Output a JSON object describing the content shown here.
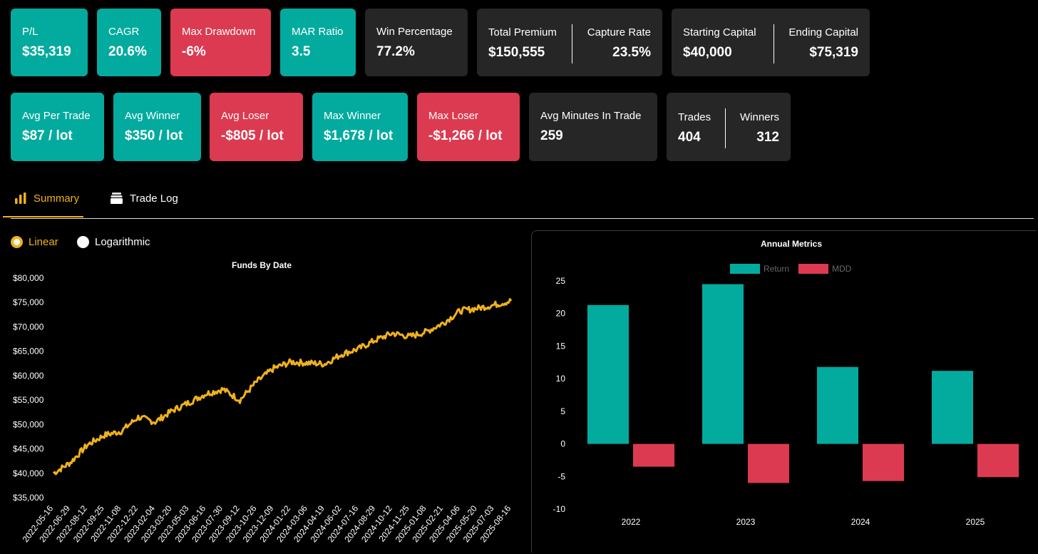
{
  "stats_row1": [
    {
      "label": "P/L",
      "value": "$35,319",
      "tone": "teal"
    },
    {
      "label": "CAGR",
      "value": "20.6%",
      "tone": "teal"
    },
    {
      "label": "Max Drawdown",
      "value": "-6%",
      "tone": "red"
    },
    {
      "label": "MAR Ratio",
      "value": "3.5",
      "tone": "teal"
    },
    {
      "label": "Win Percentage",
      "value": "77.2%",
      "tone": "dark"
    }
  ],
  "premium": {
    "left_label": "Total Premium",
    "left_value": "$150,555",
    "right_label": "Capture Rate",
    "right_value": "23.5%"
  },
  "capital": {
    "left_label": "Starting Capital",
    "left_value": "$40,000",
    "right_label": "Ending Capital",
    "right_value": "$75,319"
  },
  "stats_row2": [
    {
      "label": "Avg Per Trade",
      "value": "$87 / lot",
      "tone": "teal"
    },
    {
      "label": "Avg Winner",
      "value": "$350 / lot",
      "tone": "teal"
    },
    {
      "label": "Avg Loser",
      "value": "-$805 / lot",
      "tone": "red"
    },
    {
      "label": "Max Winner",
      "value": "$1,678 / lot",
      "tone": "teal"
    },
    {
      "label": "Max Loser",
      "value": "-$1,266 / lot",
      "tone": "red"
    },
    {
      "label": "Avg Minutes In Trade",
      "value": "259",
      "tone": "dark"
    }
  ],
  "trades": {
    "left_label": "Trades",
    "left_value": "404",
    "right_label": "Winners",
    "right_value": "312"
  },
  "tabs": {
    "summary": "Summary",
    "trade_log": "Trade Log"
  },
  "scale": {
    "linear": "Linear",
    "log": "Logarithmic"
  },
  "colors": {
    "teal": "#03ab9e",
    "red": "#dc3a50",
    "gold": "#f0b21c",
    "dark": "#262626"
  },
  "chart_data": [
    {
      "type": "line",
      "title": "Funds By Date",
      "ylim": [
        35000,
        80000
      ],
      "yticks": [
        "$80,000",
        "$75,000",
        "$70,000",
        "$65,000",
        "$60,000",
        "$55,000",
        "$50,000",
        "$45,000",
        "$40,000",
        "$35,000"
      ],
      "x": [
        "2022-05-16",
        "2022-06-29",
        "2022-08-12",
        "2022-09-25",
        "2022-11-08",
        "2022-12-22",
        "2023-02-04",
        "2023-03-20",
        "2023-05-03",
        "2023-06-16",
        "2023-07-30",
        "2023-09-12",
        "2023-10-26",
        "2023-12-09",
        "2024-01-22",
        "2024-03-06",
        "2024-04-19",
        "2024-06-02",
        "2024-07-16",
        "2024-08-29",
        "2024-10-12",
        "2024-11-25",
        "2025-01-08",
        "2025-02-21",
        "2025-04-06",
        "2025-05-20",
        "2025-07-03",
        "2025-08-16"
      ],
      "series": [
        {
          "name": "Funds",
          "values": [
            40000,
            42200,
            45800,
            47800,
            48600,
            51500,
            50500,
            52800,
            54500,
            56300,
            57200,
            55000,
            58800,
            61500,
            62800,
            62600,
            62400,
            64400,
            65500,
            67300,
            68700,
            68000,
            69000,
            70800,
            73300,
            73800,
            74500,
            75319
          ]
        }
      ]
    },
    {
      "type": "bar",
      "title": "Annual Metrics",
      "categories": [
        "2022",
        "2023",
        "2024",
        "2025"
      ],
      "ylim": [
        -10,
        25
      ],
      "yticks": [
        "25",
        "20",
        "15",
        "10",
        "5",
        "0",
        "-5",
        "-10"
      ],
      "series": [
        {
          "name": "Return",
          "values": [
            21.3,
            24.5,
            11.8,
            11.2
          ]
        },
        {
          "name": "MDD",
          "values": [
            -3.5,
            -6.0,
            -5.7,
            -5.1
          ]
        }
      ]
    }
  ]
}
